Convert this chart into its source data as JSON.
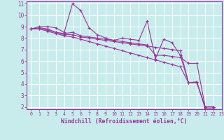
{
  "xlabel": "Windchill (Refroidissement éolien,°C)",
  "background_color": "#c8ecec",
  "line_color": "#993399",
  "grid_color": "#ffffff",
  "xlim": [
    -0.5,
    23
  ],
  "ylim": [
    1.8,
    11.2
  ],
  "xticks": [
    0,
    1,
    2,
    3,
    4,
    5,
    6,
    7,
    8,
    9,
    10,
    11,
    12,
    13,
    14,
    15,
    16,
    17,
    18,
    19,
    20,
    21,
    22,
    23
  ],
  "yticks": [
    2,
    3,
    4,
    5,
    6,
    7,
    8,
    9,
    10,
    11
  ],
  "series": [
    [
      8.8,
      9.0,
      9.0,
      8.9,
      8.5,
      11.0,
      10.4,
      8.9,
      8.3,
      8.0,
      7.8,
      8.0,
      7.9,
      7.8,
      9.5,
      6.2,
      7.9,
      7.6,
      6.5,
      4.1,
      4.2,
      1.85,
      1.85
    ],
    [
      8.8,
      8.9,
      8.8,
      8.5,
      8.4,
      8.5,
      8.2,
      8.1,
      8.0,
      7.9,
      7.8,
      7.7,
      7.6,
      7.5,
      7.4,
      6.5,
      6.5,
      6.4,
      6.3,
      5.8,
      5.8,
      2.0,
      2.0
    ],
    [
      8.8,
      8.8,
      8.7,
      8.5,
      8.3,
      8.3,
      8.1,
      8.0,
      7.9,
      7.8,
      7.7,
      7.6,
      7.5,
      7.4,
      7.3,
      7.2,
      7.1,
      7.0,
      6.9,
      4.1,
      4.1,
      2.0,
      2.0
    ],
    [
      8.8,
      8.8,
      8.6,
      8.4,
      8.2,
      8.1,
      7.9,
      7.7,
      7.5,
      7.3,
      7.1,
      6.9,
      6.7,
      6.5,
      6.3,
      6.1,
      5.9,
      5.7,
      5.5,
      4.1,
      4.1,
      2.0,
      2.0
    ]
  ],
  "xlabel_fontsize": 5.8,
  "tick_fontsize_x": 4.8,
  "tick_fontsize_y": 5.5
}
